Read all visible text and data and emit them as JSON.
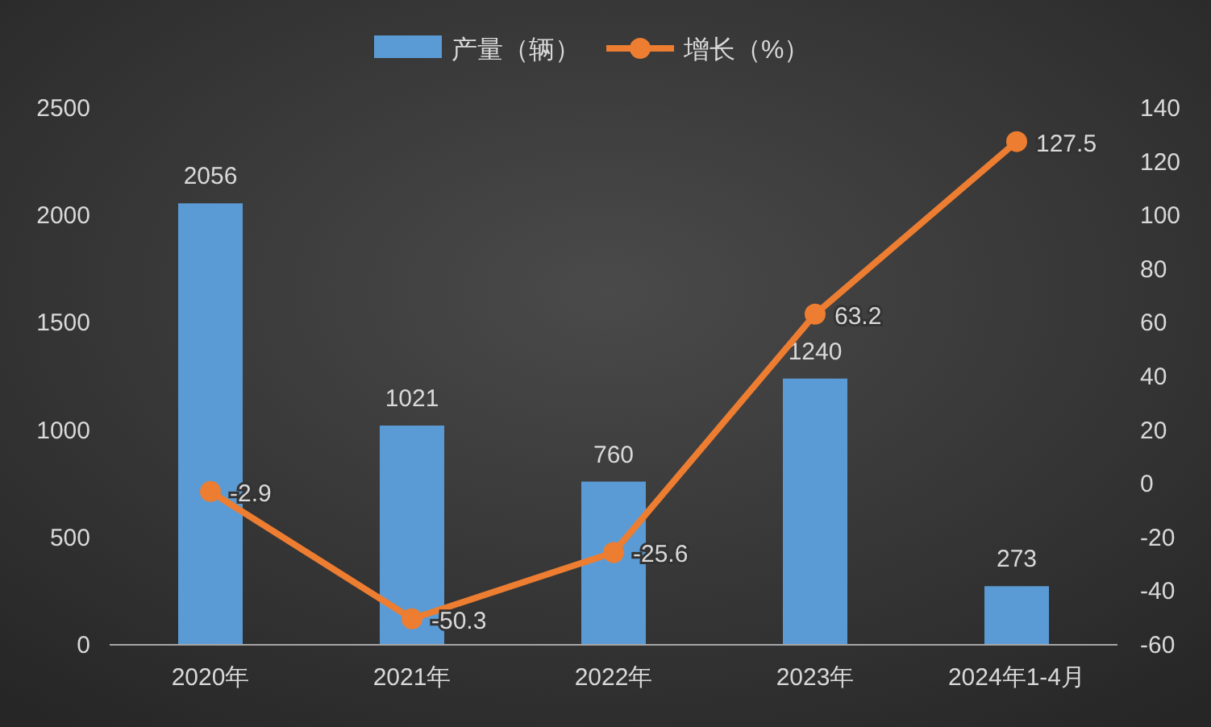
{
  "chart_data": {
    "type": "bar",
    "categories": [
      "2020年",
      "2021年",
      "2022年",
      "2023年",
      "2024年1-4月"
    ],
    "series": [
      {
        "name": "产量（辆）",
        "color": "#5b9bd5",
        "values": [
          2056,
          1021,
          760,
          1240,
          273
        ]
      },
      {
        "name": "增长（%）",
        "type": "line",
        "axis": "y2",
        "color": "#ed7d31",
        "marker": "circle",
        "values": [
          -2.9,
          -50.3,
          -25.6,
          63.2,
          127.5
        ]
      }
    ],
    "ylim": [
      0,
      2500
    ],
    "yticks": [
      0,
      500,
      1000,
      1500,
      2000,
      2500
    ],
    "y2lim": [
      -60,
      140
    ],
    "y2ticks": [
      -60,
      -40,
      -20,
      0,
      20,
      40,
      60,
      80,
      100,
      120,
      140
    ],
    "data_labels": true,
    "legend": "top",
    "grid": false
  }
}
